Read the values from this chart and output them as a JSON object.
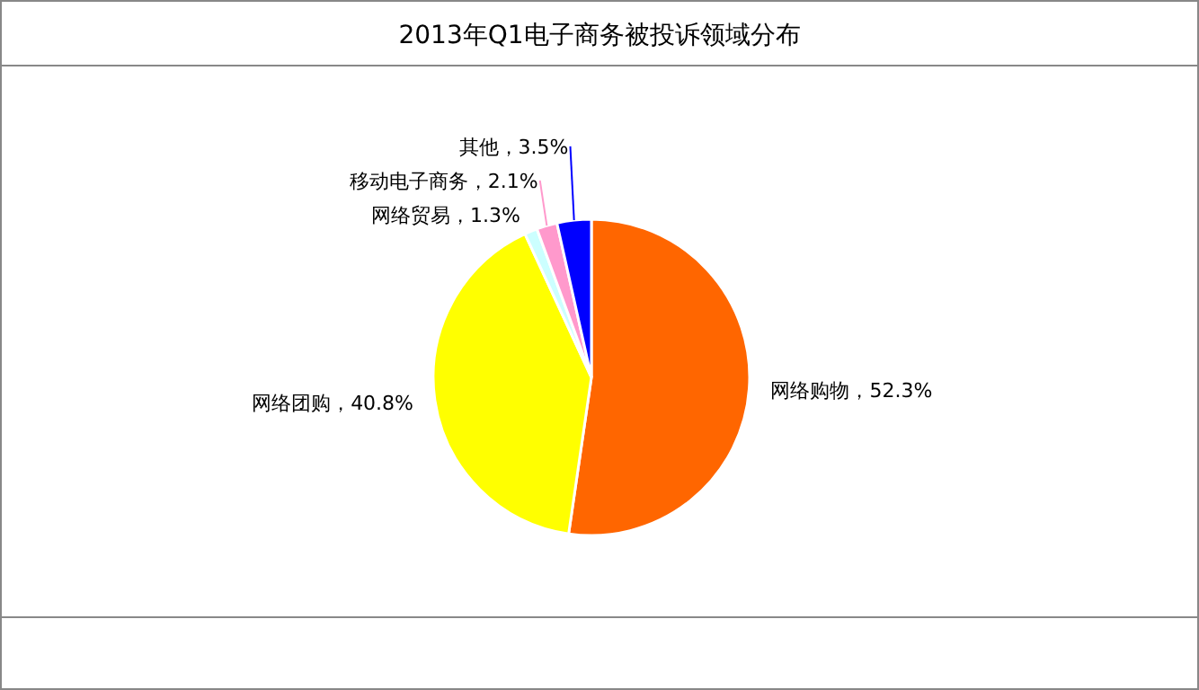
{
  "chart_data": {
    "type": "pie",
    "title": "2013年Q1电子商务被投诉领域分布",
    "categories": [
      "网络购物",
      "网络团购",
      "网络贸易",
      "移动电子商务",
      "其他"
    ],
    "values": [
      52.3,
      40.8,
      1.3,
      2.1,
      3.5
    ],
    "value_labels": [
      "52.3%",
      "40.8%",
      "1.3%",
      "2.1%",
      "3.5%"
    ],
    "colors": [
      "#ff6600",
      "#ffff00",
      "#ccffff",
      "#ff99cc",
      "#0000ff"
    ],
    "legend": false
  }
}
